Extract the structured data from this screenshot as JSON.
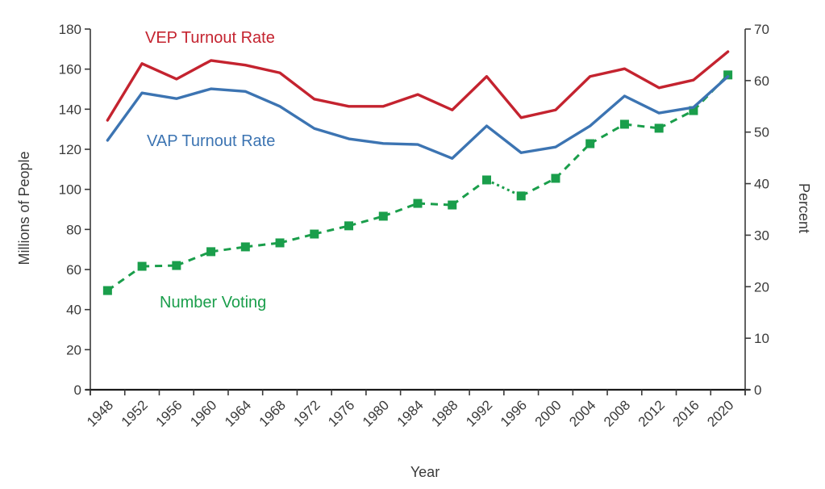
{
  "chart_data": {
    "type": "line",
    "title": "",
    "xlabel": "Year",
    "ylabel_left": "Millions of People",
    "ylabel_right": "Percent",
    "categories": [
      "1948",
      "1952",
      "1956",
      "1960",
      "1964",
      "1968",
      "1972",
      "1976",
      "1980",
      "1984",
      "1988",
      "1992",
      "1996",
      "2000",
      "2004",
      "2008",
      "2012",
      "2016",
      "2020"
    ],
    "y_left": {
      "min": 0,
      "max": 180,
      "step": 20,
      "ticks": [
        "0",
        "20",
        "40",
        "60",
        "80",
        "100",
        "120",
        "140",
        "160",
        "180"
      ]
    },
    "y_right": {
      "min": 0,
      "max": 70,
      "step": 10,
      "ticks": [
        "0",
        "10",
        "20",
        "30",
        "40",
        "50",
        "60",
        "70"
      ]
    },
    "grid": false,
    "legend": "inline labels",
    "series": [
      {
        "name": "VEP Turnout Rate",
        "axis": "right",
        "unit": "percent",
        "color": "#c4232f",
        "style": "solid",
        "values": [
          52.3,
          63.3,
          60.3,
          63.9,
          63.0,
          61.5,
          56.4,
          55.0,
          55.0,
          57.3,
          54.3,
          60.8,
          52.8,
          54.3,
          60.8,
          62.3,
          58.6,
          60.1,
          65.6
        ]
      },
      {
        "name": "VAP Turnout Rate",
        "axis": "right",
        "unit": "percent",
        "color": "#3c74b2",
        "style": "solid",
        "values": [
          48.4,
          57.6,
          56.5,
          58.4,
          57.9,
          55.0,
          50.7,
          48.7,
          47.8,
          47.6,
          44.9,
          51.2,
          46.0,
          47.1,
          51.2,
          57.0,
          53.7,
          54.8,
          60.8
        ]
      },
      {
        "name": "Number Voting",
        "axis": "left",
        "unit": "millions",
        "color": "#1a9e4b",
        "style": "dashed with square markers",
        "values": [
          49.5,
          61.6,
          62.0,
          68.9,
          71.3,
          73.3,
          77.7,
          81.8,
          86.6,
          93.0,
          92.2,
          104.7,
          96.7,
          105.5,
          122.8,
          132.5,
          130.5,
          139.3,
          157.1
        ]
      }
    ],
    "annotations": [
      {
        "text": "VEP Turnout Rate",
        "color": "#c4232f"
      },
      {
        "text": "VAP Turnout Rate",
        "color": "#3c74b2"
      },
      {
        "text": "Number Voting",
        "color": "#1a9e4b"
      }
    ]
  }
}
